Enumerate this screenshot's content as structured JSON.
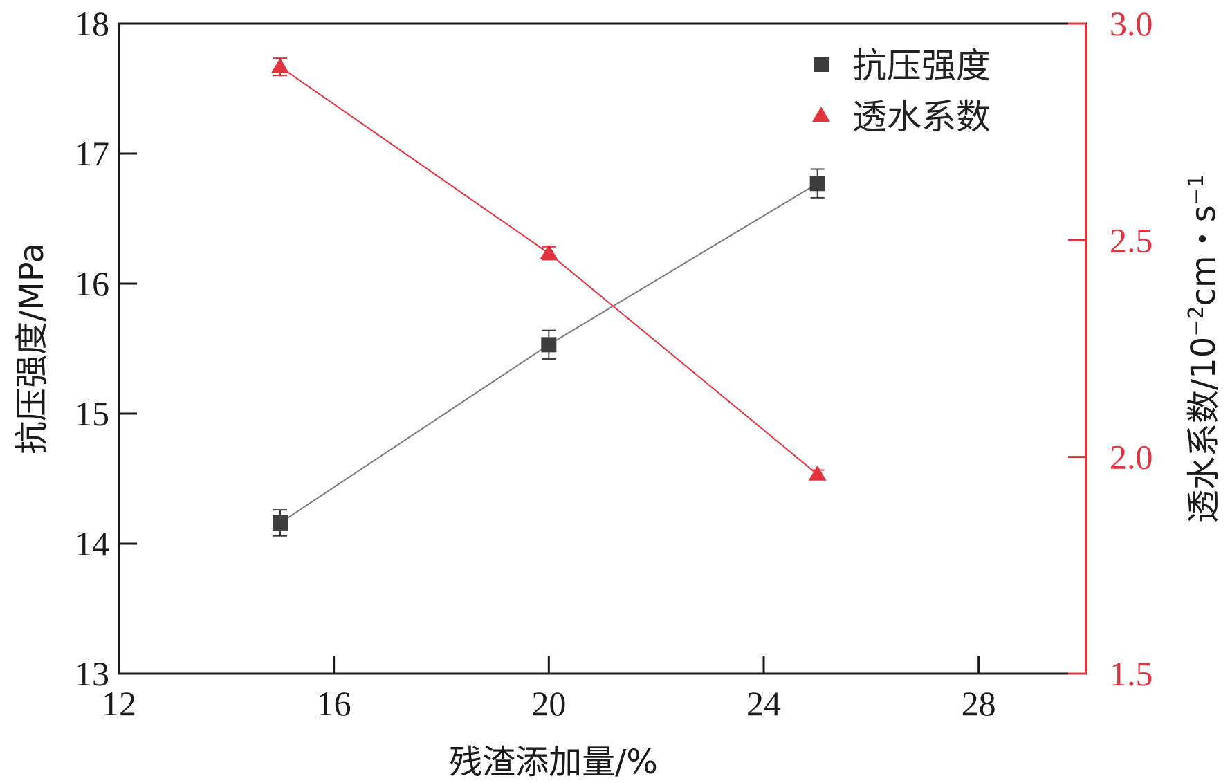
{
  "chart_data": {
    "type": "line",
    "xlabel": "残渣添加量/%",
    "ylabel_left": "抗压强度/MPa",
    "ylabel_right_main": "透水系数/10",
    "ylabel_right_exp1": "−2",
    "ylabel_right_mid": "cm・s",
    "ylabel_right_exp2": "−1",
    "xlim": [
      12,
      30
    ],
    "xticks": [
      12,
      16,
      20,
      24,
      28
    ],
    "ylim_left": [
      13,
      18
    ],
    "yticks_left": [
      13,
      14,
      15,
      16,
      17,
      18
    ],
    "ylim_right": [
      1.5,
      3.0
    ],
    "yticks_right": [
      "1.5",
      "2.0",
      "2.5",
      "3.0"
    ],
    "legend_position": "top-right",
    "grid": false,
    "series": [
      {
        "name": "抗压强度",
        "axis": "left",
        "marker": "square",
        "color": "#3d3d3d",
        "line_color": "#7a7a7a",
        "x": [
          15,
          20,
          25
        ],
        "y": [
          14.16,
          15.53,
          16.77
        ],
        "yerr": [
          0.1,
          0.11,
          0.11
        ]
      },
      {
        "name": "透水系数",
        "axis": "right",
        "marker": "triangle",
        "color": "#e0343f",
        "line_color": "#e0343f",
        "x": [
          15,
          20,
          25
        ],
        "y": [
          2.9,
          2.47,
          1.96
        ],
        "yerr": [
          0.02,
          0.015,
          0.01
        ]
      }
    ]
  }
}
